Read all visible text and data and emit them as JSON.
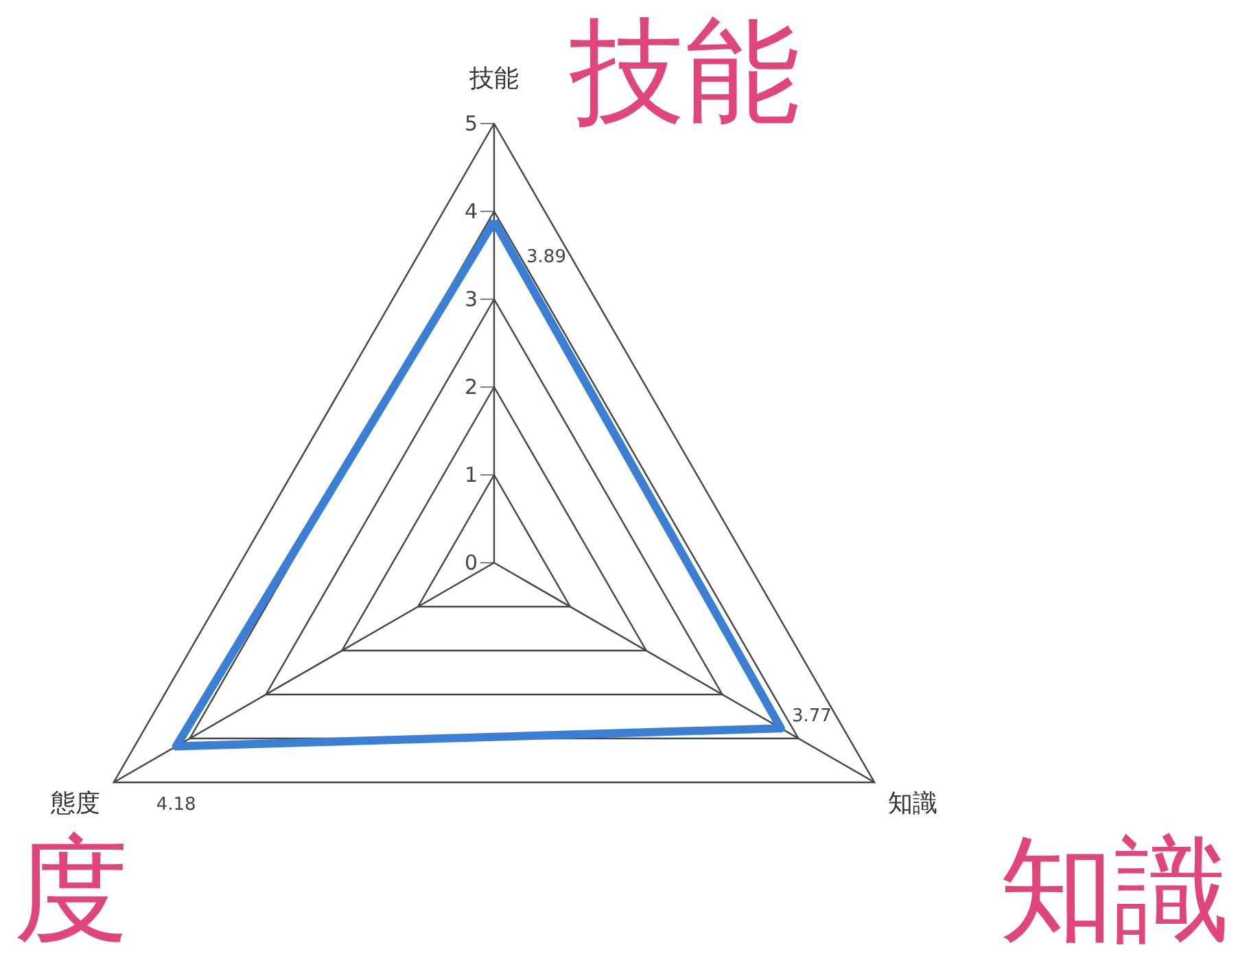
{
  "chart_data": {
    "type": "radar",
    "categories": [
      "技能",
      "知識",
      "態度"
    ],
    "series": [
      {
        "color": "#3b7fd4",
        "values": [
          3.89,
          3.77,
          4.18
        ]
      }
    ],
    "ylim": [
      0,
      5
    ],
    "yticks": [
      0,
      1,
      2,
      3,
      4,
      5
    ],
    "grid": true,
    "data_labels": true,
    "marker": "none",
    "annotations": [
      "技能",
      "度",
      "知識"
    ]
  }
}
